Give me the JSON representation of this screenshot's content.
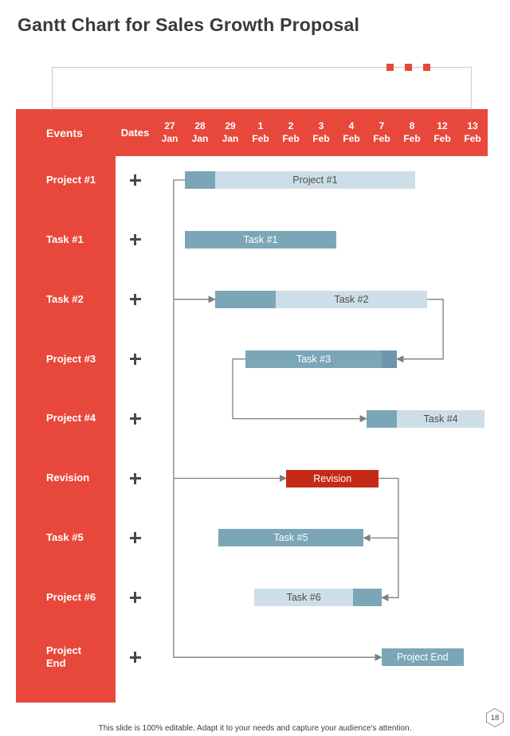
{
  "slide": {
    "title": "Gantt Chart for Sales Growth Proposal",
    "footer": "This slide is 100% editable. Adapt it to your needs and capture your audience's attention.",
    "page_number": "18"
  },
  "colors": {
    "theme_red": "#E8483C",
    "revision_red": "#C52A18",
    "bar_medium": "#7BA6B7",
    "bar_light": "#CDDEE8",
    "bar_dark": "#6B96AB",
    "connector": "#7F7F7F",
    "label_dark": "#4D4D4D"
  },
  "chart_data": {
    "type": "gantt",
    "header": {
      "events_label": "Events",
      "dates_label": "Dates",
      "date_columns": [
        {
          "day": "27",
          "month": "Jan"
        },
        {
          "day": "28",
          "month": "Jan"
        },
        {
          "day": "29",
          "month": "Jan"
        },
        {
          "day": "1",
          "month": "Feb"
        },
        {
          "day": "2",
          "month": "Feb"
        },
        {
          "day": "3",
          "month": "Feb"
        },
        {
          "day": "4",
          "month": "Feb"
        },
        {
          "day": "7",
          "month": "Feb"
        },
        {
          "day": "8",
          "month": "Feb"
        },
        {
          "day": "12",
          "month": "Feb"
        },
        {
          "day": "13",
          "month": "Feb"
        }
      ]
    },
    "rows": [
      {
        "event": "Project #1",
        "bar": {
          "label": "Project #1",
          "segments": [
            {
              "from_col": 1,
              "to_col": 2,
              "color": "medium"
            },
            {
              "from_col": 2,
              "to_col": 8.6,
              "color": "light"
            }
          ]
        }
      },
      {
        "event": "Task #1",
        "bar": {
          "label": "Task #1",
          "segments": [
            {
              "from_col": 1,
              "to_col": 6,
              "color": "medium"
            }
          ]
        }
      },
      {
        "event": "Task #2",
        "bar": {
          "label": "Task #2",
          "segments": [
            {
              "from_col": 2,
              "to_col": 4,
              "color": "medium"
            },
            {
              "from_col": 4,
              "to_col": 9,
              "color": "light"
            }
          ]
        }
      },
      {
        "event": "Project #3",
        "bar": {
          "label": "Task #3",
          "segments": [
            {
              "from_col": 3,
              "to_col": 7.5,
              "color": "medium"
            },
            {
              "from_col": 7.5,
              "to_col": 8,
              "color": "dark"
            }
          ]
        }
      },
      {
        "event": "Project #4",
        "bar": {
          "label": "Task #4",
          "segments": [
            {
              "from_col": 7,
              "to_col": 8,
              "color": "medium"
            },
            {
              "from_col": 8,
              "to_col": 10.9,
              "color": "light"
            }
          ]
        }
      },
      {
        "event": "Revision",
        "bar": {
          "label": "Revision",
          "segments": [
            {
              "from_col": 4.35,
              "to_col": 7.4,
              "color": "red"
            }
          ]
        }
      },
      {
        "event": "Task #5",
        "bar": {
          "label": "Task #5",
          "segments": [
            {
              "from_col": 2.1,
              "to_col": 6.9,
              "color": "medium"
            }
          ]
        }
      },
      {
        "event": "Project #6",
        "bar": {
          "label": "Task #6",
          "segments": [
            {
              "from_col": 3.3,
              "to_col": 6.55,
              "color": "light"
            },
            {
              "from_col": 6.55,
              "to_col": 7.5,
              "color": "medium"
            }
          ]
        }
      },
      {
        "event": "Project End",
        "bar": {
          "label": "Project End",
          "segments": [
            {
              "from_col": 7.5,
              "to_col": 10.2,
              "color": "medium"
            }
          ]
        }
      }
    ],
    "connectors": [
      {
        "name": "start-spine-to-project-end",
        "points": [
          [
            1,
            0
          ],
          [
            0.63,
            0
          ],
          [
            0.63,
            8
          ],
          [
            7.5,
            8
          ]
        ]
      },
      {
        "name": "spine-to-task2",
        "points": [
          [
            0.63,
            2
          ],
          [
            2,
            2
          ]
        ]
      },
      {
        "name": "spine-to-revision",
        "points": [
          [
            0.63,
            5
          ],
          [
            4.35,
            5
          ]
        ]
      },
      {
        "name": "task2-to-task3",
        "points": [
          [
            9,
            2
          ],
          [
            9.53,
            2
          ],
          [
            9.53,
            3
          ],
          [
            8,
            3
          ]
        ]
      },
      {
        "name": "task3-to-task4",
        "points": [
          [
            3,
            3
          ],
          [
            2.58,
            3
          ],
          [
            2.58,
            4
          ],
          [
            7,
            4
          ]
        ]
      },
      {
        "name": "revision-to-task6",
        "points": [
          [
            7.4,
            5
          ],
          [
            8.05,
            5
          ],
          [
            8.05,
            7
          ],
          [
            7.5,
            7
          ]
        ]
      },
      {
        "name": "revision-to-task5",
        "points": [
          [
            8.05,
            6
          ],
          [
            6.9,
            6
          ]
        ]
      }
    ]
  }
}
